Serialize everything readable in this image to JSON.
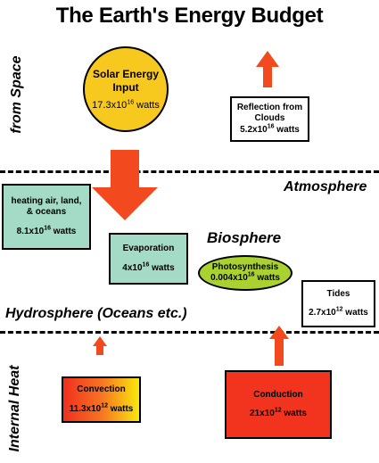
{
  "title": "The Earth's Energy Budget",
  "side_labels": {
    "space": "from Space",
    "internal": "Internal Heat"
  },
  "sphere_labels": {
    "atmosphere": "Atmosphere",
    "biosphere": "Biosphere",
    "hydrosphere": "Hydrosphere (Oceans etc.)"
  },
  "nodes": {
    "solar": {
      "label_line1": "Solar Energy",
      "label_line2": "Input",
      "value": "17.3x10",
      "exp": "16",
      "unit": " watts"
    },
    "reflection": {
      "label_line1": "Reflection from",
      "label_line2": "Clouds",
      "value": "5.2x10",
      "exp": "16",
      "unit": " watts"
    },
    "heating": {
      "label_line1": "heating air, land,",
      "label_line2": "& oceans",
      "value": "8.1x10",
      "exp": "16",
      "unit": " watts"
    },
    "evaporation": {
      "label": "Evaporation",
      "value": "4x10",
      "exp": "16",
      "unit": " watts"
    },
    "photosynthesis": {
      "label": "Photosynthesis",
      "value": "0.004x10",
      "exp": "16",
      "unit": " watts"
    },
    "tides": {
      "label": "Tides",
      "value": "2.7x10",
      "exp": "12",
      "unit": " watts"
    },
    "convection": {
      "label": "Convection",
      "value": "11.3x10",
      "exp": "12",
      "unit": " watts"
    },
    "conduction": {
      "label": "Conduction",
      "value": "21x10",
      "exp": "12",
      "unit": " watts"
    }
  },
  "colors": {
    "solar": "#f7c81e",
    "boxes_teal": "#a3dbc7",
    "photosynthesis": "#a9d130",
    "arrow": "#f24a1e",
    "conduction": "#f2341f"
  }
}
